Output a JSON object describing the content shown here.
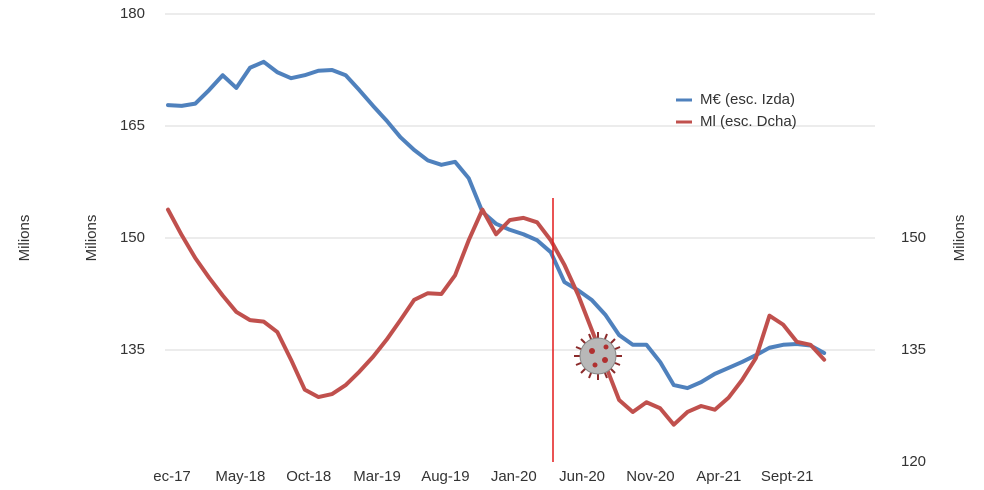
{
  "chart_data": {
    "type": "line",
    "y_label": "Milions",
    "y_label_outer": "Milions",
    "y2_label": "Milions",
    "categories": [
      "ec-17",
      null,
      null,
      null,
      null,
      "May-18",
      null,
      null,
      null,
      null,
      "Oct-18",
      null,
      null,
      null,
      null,
      "Mar-19",
      null,
      null,
      null,
      null,
      "Aug-19",
      null,
      null,
      null,
      null,
      "Jan-20",
      null,
      null,
      null,
      null,
      "Jun-20",
      null,
      null,
      null,
      null,
      "Nov-20",
      null,
      null,
      null,
      null,
      "Apr-21",
      null,
      null,
      null,
      null,
      "Sept-21",
      null,
      null,
      null
    ],
    "series": [
      {
        "name": "M€ (esc. Izda)",
        "color": "#4f81bd",
        "axis": "y",
        "values": [
          167.8,
          167.7,
          168.0,
          169.8,
          171.8,
          170.1,
          172.8,
          173.6,
          172.2,
          171.4,
          171.8,
          172.4,
          172.5,
          171.8,
          169.8,
          167.7,
          165.7,
          163.5,
          161.8,
          160.4,
          159.8,
          160.2,
          158.0,
          153.5,
          151.9,
          151.1,
          150.5,
          149.7,
          148.1,
          144.1,
          143.0,
          141.7,
          139.7,
          137.0,
          135.7,
          135.7,
          133.4,
          130.3,
          129.9,
          130.7,
          131.8,
          132.6,
          133.4,
          134.3,
          135.3,
          135.7,
          135.8,
          135.6,
          134.6
        ]
      },
      {
        "name": "Ml (esc. Dcha)",
        "color": "#c0504d",
        "axis": "y2",
        "values": [
          153.8,
          150.4,
          147.3,
          144.7,
          142.3,
          140.1,
          139.0,
          138.8,
          137.4,
          133.7,
          129.7,
          128.7,
          129.1,
          130.3,
          132.1,
          134.1,
          136.4,
          139.0,
          141.7,
          142.6,
          142.5,
          145.0,
          149.7,
          153.8,
          150.5,
          152.4,
          152.7,
          152.1,
          149.7,
          146.4,
          142.4,
          137.7,
          133.0,
          128.3,
          126.7,
          128.0,
          127.2,
          125.0,
          126.7,
          127.5,
          127.0,
          128.6,
          131.0,
          133.9,
          139.6,
          138.4,
          136.1,
          135.7,
          133.7
        ]
      }
    ],
    "ylim": [
      120,
      180
    ],
    "yticks": [
      135,
      150,
      165,
      180
    ],
    "y2lim": [
      120,
      180
    ],
    "y2ticks": [
      120,
      135,
      150
    ],
    "grid": true,
    "legend": "upper right"
  }
}
